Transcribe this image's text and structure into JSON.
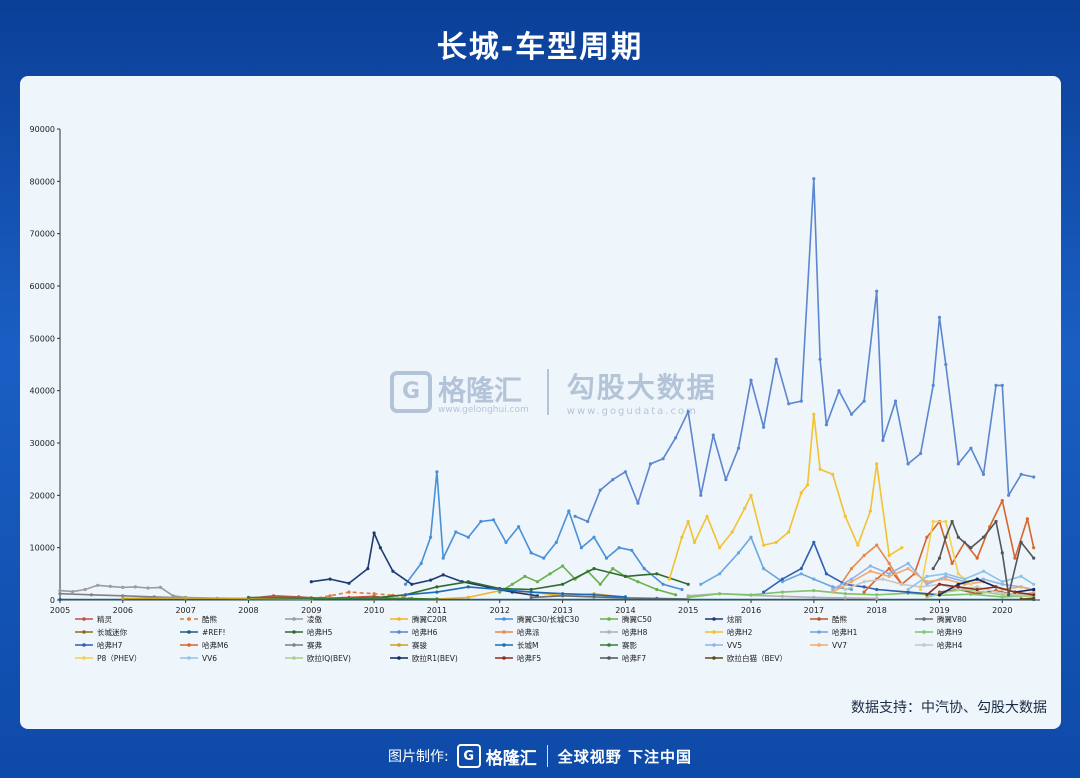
{
  "page": {
    "title": "长城-车型周期",
    "source": "数据支持：中汽协、勾股大数据",
    "footer_made": "图片制作:",
    "footer_brand": "格隆汇",
    "footer_slogan": "全球视野 下注中国",
    "watermark_brand_1": "格隆汇",
    "watermark_url_1": "www.gelonghui.com",
    "watermark_brand_2": "勾股大数据",
    "watermark_url_2": "www.gogudata.com"
  },
  "chart_data": {
    "type": "line",
    "title": "长城-车型周期",
    "xlabel": "",
    "ylabel": "",
    "xlim": [
      2005,
      2020.6
    ],
    "ylim": [
      0,
      90000
    ],
    "x_ticks": [
      "2005",
      "2006",
      "2007",
      "2008",
      "2009",
      "2010",
      "2011",
      "2012",
      "2013",
      "2014",
      "2015",
      "2016",
      "2017",
      "2018",
      "2019",
      "2020"
    ],
    "y_ticks": [
      0,
      10000,
      20000,
      30000,
      40000,
      50000,
      60000,
      70000,
      80000,
      90000
    ],
    "grid": false,
    "legend_position": "bottom",
    "series": [
      {
        "name": "精灵",
        "color": "#c0504d",
        "x": [
          2008.0,
          2008.4,
          2008.8,
          2009.2,
          2009.6,
          2010.0,
          2010.3
        ],
        "y": [
          300,
          800,
          600,
          300,
          500,
          700,
          200
        ]
      },
      {
        "name": "酷熊",
        "color": "#e07b39",
        "dash": true,
        "x": [
          2009.0,
          2009.3,
          2009.6,
          2010.0,
          2010.3,
          2010.6
        ],
        "y": [
          200,
          800,
          1500,
          1200,
          900,
          300
        ]
      },
      {
        "name": "凌傲",
        "color": "#9c9c9c",
        "x": [
          2005.0,
          2005.2,
          2005.4,
          2005.6,
          2005.8,
          2006.0,
          2006.2,
          2006.4,
          2006.6,
          2006.8,
          2007.0,
          2007.5
        ],
        "y": [
          1800,
          1600,
          2000,
          2800,
          2600,
          2400,
          2500,
          2300,
          2400,
          800,
          500,
          300
        ]
      },
      {
        "name": "腾翼C20R",
        "color": "#f0b323",
        "x": [
          2011.0,
          2011.5,
          2012.0,
          2012.5,
          2013.0,
          2013.5,
          2014.0
        ],
        "y": [
          200,
          500,
          1800,
          1500,
          800,
          1200,
          500
        ]
      },
      {
        "name": "腾翼C30/长城C30",
        "color": "#4a90d9",
        "x": [
          2010.5,
          2010.75,
          2010.9,
          2011.0,
          2011.1,
          2011.3,
          2011.5,
          2011.7,
          2011.9,
          2012.1,
          2012.3,
          2012.5,
          2012.7,
          2012.9,
          2013.1,
          2013.3,
          2013.5,
          2013.7,
          2013.9,
          2014.1,
          2014.3,
          2014.6,
          2014.9
        ],
        "y": [
          3000,
          7000,
          12000,
          24500,
          8000,
          13000,
          12000,
          15000,
          15300,
          11000,
          14000,
          9000,
          8000,
          11000,
          17000,
          10000,
          12000,
          8000,
          10000,
          9500,
          6000,
          3000,
          2000
        ]
      },
      {
        "name": "腾翼C50",
        "color": "#6ab04c",
        "x": [
          2012.0,
          2012.2,
          2012.4,
          2012.6,
          2012.8,
          2013.0,
          2013.2,
          2013.4,
          2013.6,
          2013.8,
          2014.0,
          2014.2,
          2014.5,
          2014.8
        ],
        "y": [
          1500,
          3000,
          4500,
          3500,
          5000,
          6500,
          4000,
          5500,
          3000,
          6000,
          4500,
          3500,
          2000,
          1000
        ]
      },
      {
        "name": "炫丽",
        "color": "#1f3a73",
        "x": [
          2009.0,
          2009.3,
          2009.6,
          2009.9,
          2010.0,
          2010.1,
          2010.3,
          2010.6,
          2010.9,
          2011.1,
          2011.4,
          2011.8,
          2012.2,
          2012.6
        ],
        "y": [
          3500,
          4000,
          3200,
          6000,
          12800,
          10000,
          5500,
          3000,
          3800,
          4800,
          3500,
          2500,
          1500,
          800
        ]
      },
      {
        "name": "酷熊",
        "color": "#b55a2a",
        "x": [
          2019.0,
          2019.3,
          2019.6,
          2019.9,
          2020.2,
          2020.5
        ],
        "y": [
          1500,
          2000,
          1200,
          1800,
          1000,
          1300
        ]
      },
      {
        "name": "腾翼V80",
        "color": "#6d6d6d",
        "x": [
          2012.5,
          2013.0,
          2013.5,
          2014.0,
          2014.5,
          2015.0
        ],
        "y": [
          500,
          800,
          600,
          400,
          300,
          200
        ]
      },
      {
        "name": "长城迷你",
        "color": "#8a6d1c",
        "x": [
          2008.0,
          2008.5,
          2009.0,
          2009.5,
          2010.0
        ],
        "y": [
          300,
          500,
          400,
          300,
          200
        ]
      },
      {
        "name": "#REF!",
        "color": "#1b5e7a",
        "x": [
          2005.0,
          2020.5
        ],
        "y": [
          100,
          100
        ]
      },
      {
        "name": "哈弗H5",
        "color": "#2e6b2e",
        "x": [
          2010.0,
          2010.5,
          2011.0,
          2011.5,
          2012.0,
          2012.5,
          2013.0,
          2013.5,
          2014.0,
          2014.5,
          2015.0
        ],
        "y": [
          400,
          1000,
          2500,
          3500,
          2200,
          2000,
          3000,
          6000,
          4500,
          5000,
          3000
        ]
      },
      {
        "name": "哈弗H6",
        "color": "#5b86d0",
        "x": [
          2013.2,
          2013.4,
          2013.6,
          2013.8,
          2014.0,
          2014.2,
          2014.4,
          2014.6,
          2014.8,
          2015.0,
          2015.2,
          2015.4,
          2015.6,
          2015.8,
          2016.0,
          2016.2,
          2016.4,
          2016.6,
          2016.8,
          2017.0,
          2017.1,
          2017.2,
          2017.4,
          2017.6,
          2017.8,
          2018.0,
          2018.1,
          2018.3,
          2018.5,
          2018.7,
          2018.9,
          2019.0,
          2019.1,
          2019.3,
          2019.5,
          2019.7,
          2019.9,
          2020.0,
          2020.1,
          2020.3,
          2020.5
        ],
        "y": [
          16000,
          15000,
          21000,
          23000,
          24500,
          18500,
          26000,
          27000,
          31000,
          36000,
          20000,
          31500,
          23000,
          29000,
          42000,
          33000,
          46000,
          37500,
          38000,
          80500,
          46000,
          33500,
          40000,
          35500,
          38000,
          59000,
          30500,
          38000,
          26000,
          28000,
          41000,
          54000,
          45000,
          26000,
          29000,
          24000,
          41000,
          41000,
          20000,
          24000,
          23500
        ]
      },
      {
        "name": "哈弗派",
        "color": "#e6894a",
        "x": [
          2017.4,
          2017.6,
          2017.8,
          2018.0,
          2018.2,
          2018.4
        ],
        "y": [
          2500,
          6000,
          8500,
          10500,
          7000,
          3000
        ]
      },
      {
        "name": "哈弗H8",
        "color": "#b0b0b0",
        "x": [
          2015.0,
          2015.5,
          2016.0,
          2016.5,
          2017.0,
          2017.5,
          2018.0
        ],
        "y": [
          800,
          1200,
          900,
          700,
          500,
          400,
          300
        ]
      },
      {
        "name": "哈弗H2",
        "color": "#f2c230",
        "x": [
          2014.7,
          2014.9,
          2015.0,
          2015.1,
          2015.3,
          2015.5,
          2015.7,
          2015.9,
          2016.0,
          2016.2,
          2016.4,
          2016.6,
          2016.8,
          2016.9,
          2017.0,
          2017.1,
          2017.3,
          2017.5,
          2017.7,
          2017.9,
          2018.0,
          2018.2,
          2018.4
        ],
        "y": [
          4000,
          12000,
          15000,
          11000,
          16000,
          10000,
          13000,
          17500,
          20000,
          10500,
          11000,
          13000,
          20500,
          22000,
          35500,
          25000,
          24000,
          16000,
          10500,
          17000,
          26000,
          8500,
          10000
        ]
      },
      {
        "name": "哈弗H1",
        "color": "#6aa7e0",
        "x": [
          2015.2,
          2015.5,
          2015.8,
          2016.0,
          2016.2,
          2016.5,
          2016.8,
          2017.0,
          2017.3,
          2017.6
        ],
        "y": [
          3000,
          5000,
          9000,
          12000,
          6000,
          3500,
          5000,
          4000,
          2500,
          2000
        ]
      },
      {
        "name": "哈弗H9",
        "color": "#7fc36a",
        "x": [
          2015.0,
          2015.5,
          2016.0,
          2016.5,
          2017.0,
          2017.5,
          2018.0,
          2018.5,
          2019.0,
          2019.5,
          2020.0,
          2020.5
        ],
        "y": [
          500,
          1200,
          1000,
          1500,
          1800,
          1200,
          1000,
          1300,
          900,
          1100,
          600,
          800
        ]
      },
      {
        "name": "哈弗H7",
        "color": "#2f5fae",
        "x": [
          2016.2,
          2016.5,
          2016.8,
          2017.0,
          2017.2,
          2017.5,
          2017.8,
          2018.0,
          2018.5,
          2019.0
        ],
        "y": [
          1500,
          4000,
          6000,
          11000,
          5000,
          3000,
          2500,
          2000,
          1500,
          1000
        ]
      },
      {
        "name": "哈弗M6",
        "color": "#d9652b",
        "x": [
          2017.8,
          2018.0,
          2018.2,
          2018.4,
          2018.6,
          2018.8,
          2019.0,
          2019.2,
          2019.4,
          2019.6,
          2019.8,
          2020.0,
          2020.2,
          2020.4,
          2020.5
        ],
        "y": [
          1500,
          4000,
          6000,
          3000,
          5000,
          12000,
          15000,
          7000,
          11000,
          8000,
          14000,
          19000,
          8000,
          15500,
          10000
        ]
      },
      {
        "name": "赛弗",
        "color": "#808080",
        "x": [
          2005.0,
          2005.5,
          2006.0,
          2006.5,
          2007.0
        ],
        "y": [
          1200,
          1000,
          800,
          600,
          400
        ]
      },
      {
        "name": "赛骏",
        "color": "#c9a227",
        "x": [
          2006.0,
          2007.0,
          2008.0,
          2009.0
        ],
        "y": [
          300,
          400,
          300,
          200
        ]
      },
      {
        "name": "长城M",
        "color": "#1e6bb8",
        "x": [
          2010.5,
          2011.0,
          2011.5,
          2012.0,
          2012.5,
          2013.0,
          2013.5,
          2014.0
        ],
        "y": [
          1000,
          1500,
          2500,
          2000,
          1500,
          1200,
          1000,
          600
        ]
      },
      {
        "name": "赛影",
        "color": "#3c7d3c",
        "x": [
          2008.0,
          2009.0,
          2010.0,
          2011.0
        ],
        "y": [
          500,
          300,
          400,
          200
        ]
      },
      {
        "name": "VV5",
        "color": "#8fb4e8",
        "x": [
          2017.3,
          2017.6,
          2017.9,
          2018.2,
          2018.5,
          2018.8,
          2019.1,
          2019.4,
          2019.7,
          2020.0,
          2020.3,
          2020.5
        ],
        "y": [
          2000,
          4000,
          6500,
          5000,
          7000,
          3000,
          4500,
          3500,
          4000,
          3000,
          2500,
          2000
        ]
      },
      {
        "name": "VV7",
        "color": "#f2a96b",
        "x": [
          2017.3,
          2017.6,
          2017.9,
          2018.2,
          2018.5,
          2018.8,
          2019.1,
          2019.4,
          2019.7,
          2020.0,
          2020.3,
          2020.5
        ],
        "y": [
          1500,
          3500,
          5500,
          4500,
          6000,
          3500,
          4000,
          3000,
          3500,
          2000,
          2500,
          1800
        ]
      },
      {
        "name": "哈弗H4",
        "color": "#c7c7c7",
        "x": [
          2017.5,
          2017.8,
          2018.1,
          2018.4,
          2018.7,
          2019.0,
          2019.3,
          2019.6,
          2019.9,
          2020.2,
          2020.5
        ],
        "y": [
          2000,
          3500,
          4000,
          3000,
          2500,
          3000,
          2000,
          2500,
          1500,
          1000,
          1200
        ]
      },
      {
        "name": "P8（PHEV）",
        "color": "#f5d04a",
        "x": [
          2018.7,
          2018.9,
          2019.1,
          2019.3,
          2019.5
        ],
        "y": [
          2000,
          15000,
          15000,
          5000,
          3000
        ]
      },
      {
        "name": "VV6",
        "color": "#8ec3e8",
        "x": [
          2018.5,
          2018.8,
          2019.1,
          2019.4,
          2019.7,
          2020.0,
          2020.3,
          2020.5
        ],
        "y": [
          2000,
          4500,
          5000,
          4000,
          5500,
          3500,
          4500,
          3000
        ]
      },
      {
        "name": "欧拉IQ(BEV)",
        "color": "#a6d08a",
        "x": [
          2018.8,
          2019.1,
          2019.4,
          2019.7,
          2020.0,
          2020.3,
          2020.5
        ],
        "y": [
          500,
          1500,
          2000,
          1500,
          1000,
          800,
          600
        ]
      },
      {
        "name": "欧拉R1(BEV)",
        "color": "#0c2a66",
        "x": [
          2019.0,
          2019.3,
          2019.6,
          2019.9,
          2020.2,
          2020.5
        ],
        "y": [
          1000,
          3000,
          4000,
          2500,
          1500,
          2000
        ]
      },
      {
        "name": "哈弗F5",
        "color": "#8b2e1a",
        "x": [
          2018.8,
          2019.0,
          2019.3,
          2019.6,
          2019.9,
          2020.2,
          2020.5
        ],
        "y": [
          1000,
          3000,
          2500,
          2000,
          2500,
          1500,
          1000
        ]
      },
      {
        "name": "哈弗F7",
        "color": "#555555",
        "x": [
          2018.9,
          2019.0,
          2019.1,
          2019.2,
          2019.3,
          2019.5,
          2019.7,
          2019.9,
          2020.0,
          2020.1,
          2020.3,
          2020.5
        ],
        "y": [
          6000,
          8000,
          12000,
          15000,
          12000,
          10000,
          12000,
          15000,
          9000,
          1000,
          11000,
          8000
        ]
      },
      {
        "name": "欧拉白猫（BEV）",
        "color": "#5e4a1a",
        "x": [
          2020.3,
          2020.5
        ],
        "y": [
          200,
          300
        ]
      }
    ]
  }
}
